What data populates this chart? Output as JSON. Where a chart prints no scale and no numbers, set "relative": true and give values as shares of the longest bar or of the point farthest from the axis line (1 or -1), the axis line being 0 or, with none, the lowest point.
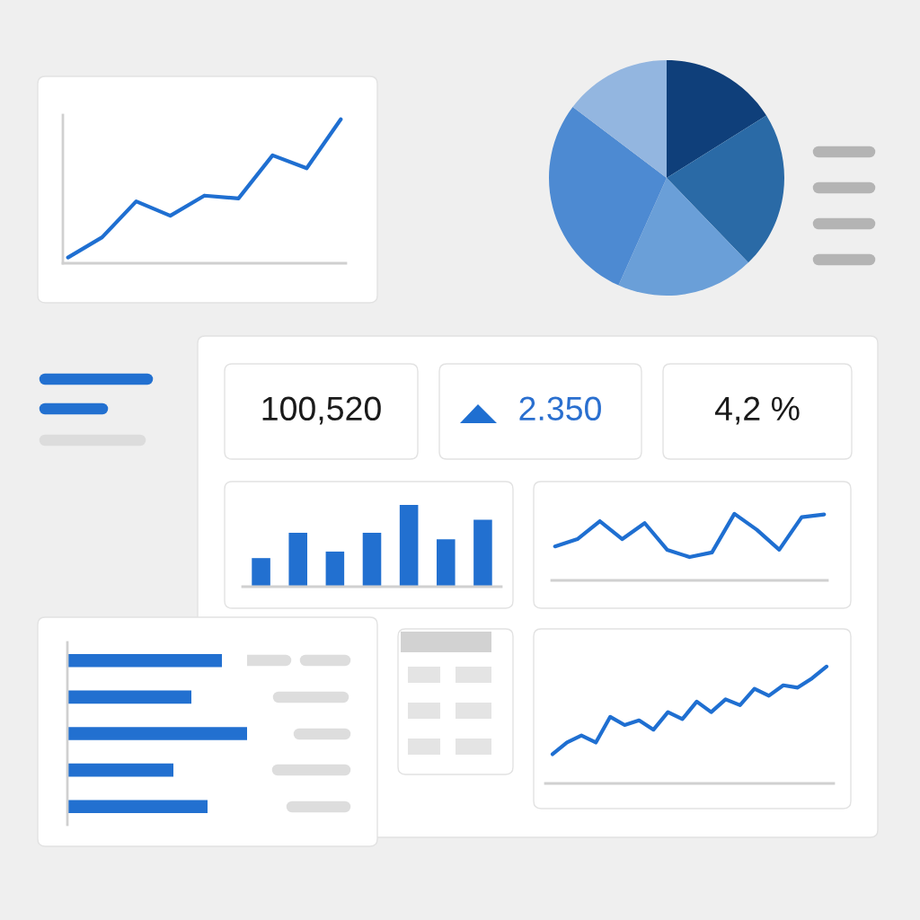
{
  "chart_data": [
    {
      "type": "line",
      "relative": true,
      "categories": [
        null,
        null,
        null,
        null,
        null,
        null,
        null,
        null,
        null
      ],
      "series": [
        {
          "color": "#1f6fd1",
          "values": [
            0.04,
            0.18,
            0.43,
            0.33,
            0.47,
            0.45,
            0.75,
            0.66,
            1
          ]
        }
      ]
    },
    {
      "type": "pie",
      "categories": [
        null,
        null,
        null,
        null,
        null
      ],
      "values": [
        16.1,
        21.7,
        18.9,
        28.6,
        14.7
      ],
      "colors": [
        "#0f3f7a",
        "#2a6aa6",
        "#6a9fd8",
        "#4d8ad2",
        "#93b6e0"
      ]
    },
    {
      "type": "bar",
      "relative": true,
      "categories": [
        null,
        null,
        null,
        null,
        null,
        null,
        null
      ],
      "values": [
        0.35,
        0.66,
        0.43,
        0.66,
        1,
        0.58,
        0.82
      ],
      "color": "#2270d0"
    },
    {
      "type": "line",
      "relative": true,
      "categories": [
        null,
        null,
        null,
        null,
        null,
        null,
        null,
        null,
        null,
        null,
        null,
        null,
        null
      ],
      "series": [
        {
          "color": "#1f6fd1",
          "values": [
            0.51,
            0.62,
            0.89,
            0.62,
            0.86,
            0.46,
            0.35,
            0.42,
            1,
            0.76,
            0.46,
            0.95,
            0.99
          ]
        }
      ]
    },
    {
      "type": "bar",
      "orientation": "horizontal",
      "relative": true,
      "categories": [
        null,
        null,
        null,
        null,
        null
      ],
      "values": [
        0.86,
        0.69,
        1,
        0.59,
        0.78
      ],
      "color": "#2270d0"
    },
    {
      "type": "line",
      "relative": true,
      "categories": [
        null,
        null,
        null,
        null,
        null,
        null,
        null,
        null,
        null,
        null,
        null,
        null,
        null,
        null,
        null,
        null,
        null,
        null,
        null,
        null
      ],
      "series": [
        {
          "color": "#1f6fd1",
          "values": [
            0.25,
            0.35,
            0.41,
            0.35,
            0.57,
            0.5,
            0.54,
            0.46,
            0.61,
            0.55,
            0.7,
            0.61,
            0.72,
            0.67,
            0.81,
            0.75,
            0.84,
            0.82,
            0.9,
            1
          ]
        }
      ]
    },
    {
      "type": "other",
      "annotations": [
        "100,520",
        "2.350",
        "4,2 %"
      ],
      "colors": [
        "#1a1a1a",
        "#2a6fcf",
        "#1a1a1a"
      ]
    }
  ]
}
